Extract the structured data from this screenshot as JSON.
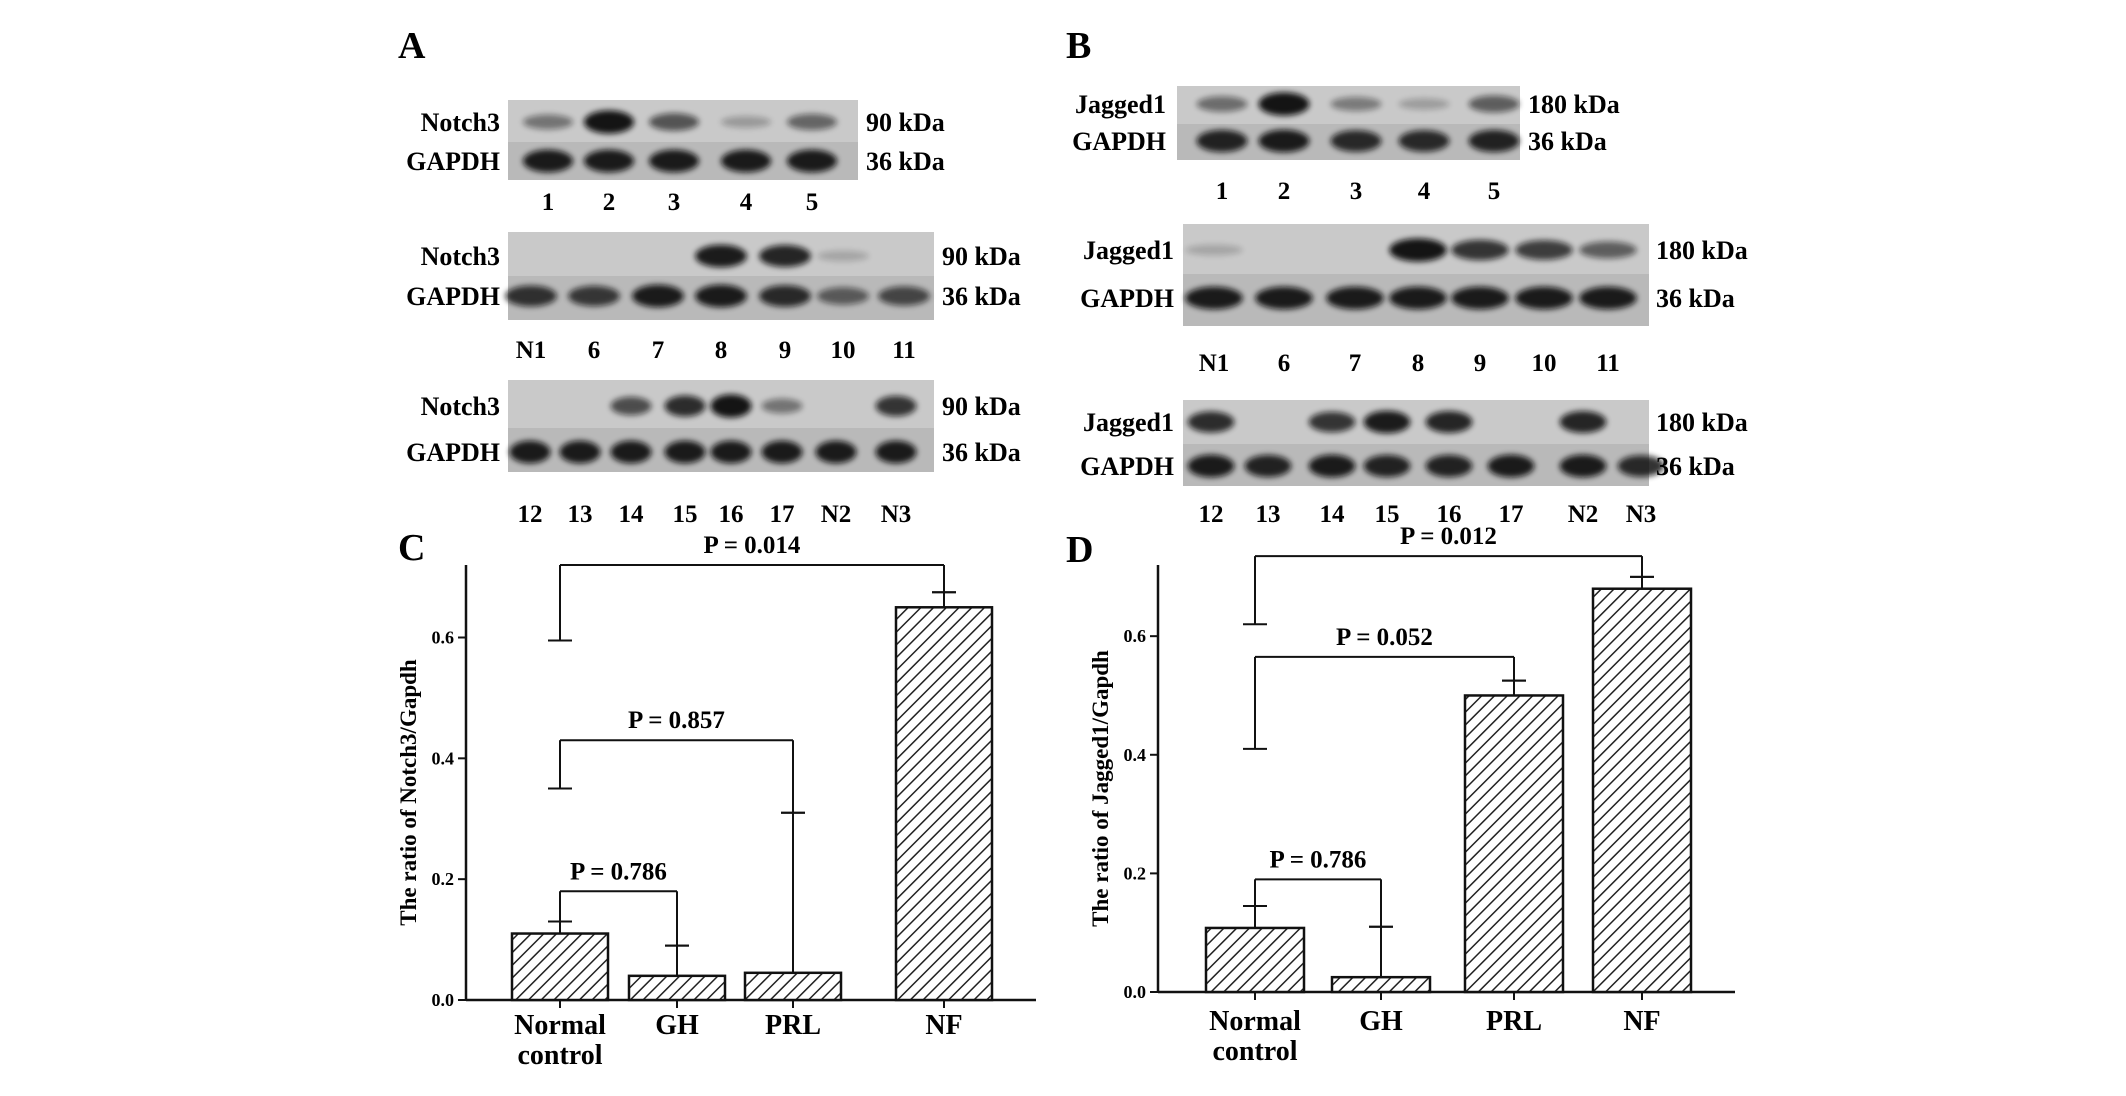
{
  "figure": {
    "panels": {
      "A": {
        "letter": "A",
        "blots": [
          {
            "target": "Notch3",
            "target_kda": "90 kDa",
            "control": "GAPDH",
            "control_kda": "36 kDa",
            "lanes": [
              "1",
              "2",
              "3",
              "4",
              "5"
            ],
            "target_band_intensity": [
              0.35,
              0.95,
              0.55,
              0.12,
              0.45
            ],
            "control_band_intensity": [
              0.9,
              0.9,
              0.9,
              0.9,
              0.9
            ]
          },
          {
            "target": "Notch3",
            "target_kda": "90 kDa",
            "control": "GAPDH",
            "control_kda": "36 kDa",
            "lanes": [
              "N1",
              "6",
              "7",
              "8",
              "9",
              "10",
              "11"
            ],
            "target_band_intensity": [
              0,
              0,
              0,
              0.9,
              0.85,
              0.05,
              0
            ],
            "control_band_intensity": [
              0.75,
              0.7,
              0.9,
              0.9,
              0.8,
              0.45,
              0.6
            ]
          },
          {
            "target": "Notch3",
            "target_kda": "90 kDa",
            "control": "GAPDH",
            "control_kda": "36 kDa",
            "lanes": [
              "12",
              "13",
              "14",
              "15",
              "16",
              "17",
              "N2",
              "N3"
            ],
            "target_band_intensity": [
              0,
              0,
              0.6,
              0.8,
              0.95,
              0.35,
              0,
              0.75
            ],
            "control_band_intensity": [
              0.9,
              0.9,
              0.9,
              0.9,
              0.9,
              0.9,
              0.9,
              0.9
            ]
          }
        ]
      },
      "B": {
        "letter": "B",
        "blots": [
          {
            "target": "Jagged1",
            "target_kda": "180 kDa",
            "control": "GAPDH",
            "control_kda": "36 kDa",
            "lanes": [
              "1",
              "2",
              "3",
              "4",
              "5"
            ],
            "target_band_intensity": [
              0.4,
              0.95,
              0.3,
              0.1,
              0.5
            ],
            "control_band_intensity": [
              0.85,
              0.9,
              0.8,
              0.8,
              0.85
            ]
          },
          {
            "target": "Jagged1",
            "target_kda": "180 kDa",
            "control": "GAPDH",
            "control_kda": "36 kDa",
            "lanes": [
              "N1",
              "6",
              "7",
              "8",
              "9",
              "10",
              "11"
            ],
            "target_band_intensity": [
              0.05,
              0,
              0,
              0.95,
              0.75,
              0.7,
              0.5
            ],
            "control_band_intensity": [
              0.9,
              0.9,
              0.9,
              0.9,
              0.9,
              0.9,
              0.9
            ]
          },
          {
            "target": "Jagged1",
            "target_kda": "180 kDa",
            "control": "GAPDH",
            "control_kda": "36 kDa",
            "lanes": [
              "12",
              "13",
              "14",
              "15",
              "16",
              "17",
              "N2",
              "N3"
            ],
            "target_band_intensity": [
              0.8,
              0,
              0.75,
              0.9,
              0.85,
              0,
              0.85,
              0
            ],
            "control_band_intensity": [
              0.9,
              0.85,
              0.9,
              0.85,
              0.85,
              0.9,
              0.9,
              0.8
            ]
          }
        ]
      },
      "C": {
        "letter": "C"
      },
      "D": {
        "letter": "D"
      }
    }
  },
  "chart_data": [
    {
      "panel": "C",
      "type": "bar",
      "categories": [
        "Normal\ncontrol",
        "GH",
        "PRL",
        "NF"
      ],
      "values": [
        0.11,
        0.04,
        0.045,
        0.65
      ],
      "error_upper": [
        0.13,
        0.09,
        0.31,
        0.675
      ],
      "ylabel": "The ratio of Notch3/Gapdh",
      "xlabel": "",
      "ylim": [
        0,
        0.72
      ],
      "yticks": [
        0.0,
        0.2,
        0.4,
        0.6
      ],
      "ytick_labels": [
        "0.0",
        "0.2",
        "0.4",
        "0.6"
      ],
      "fill": "diagonal hatch",
      "comparisons": [
        {
          "from": 0,
          "to": 3,
          "label": "P = 0.014",
          "y": 0.72,
          "left_drop": 0.595,
          "right_drop": 0.675
        },
        {
          "from": 0,
          "to": 2,
          "label": "P = 0.857",
          "y": 0.43,
          "left_drop": 0.35,
          "right_drop": 0.31
        },
        {
          "from": 0,
          "to": 1,
          "label": "P = 0.786",
          "y": 0.18,
          "left_drop": 0.13,
          "right_drop": 0.09
        }
      ]
    },
    {
      "panel": "D",
      "type": "bar",
      "categories": [
        "Normal\ncontrol",
        "GH",
        "PRL",
        "NF"
      ],
      "values": [
        0.108,
        0.025,
        0.5,
        0.68
      ],
      "error_upper": [
        0.145,
        0.11,
        0.525,
        0.7
      ],
      "ylabel": "The ratio of Jagged1/Gapdh",
      "xlabel": "",
      "ylim": [
        0,
        0.72
      ],
      "yticks": [
        0.0,
        0.2,
        0.4,
        0.6
      ],
      "ytick_labels": [
        "0.0",
        "0.2",
        "0.4",
        "0.6"
      ],
      "fill": "diagonal hatch",
      "comparisons": [
        {
          "from": 0,
          "to": 3,
          "label": "P = 0.012",
          "y": 0.735,
          "left_drop": 0.62,
          "right_drop": 0.7
        },
        {
          "from": 0,
          "to": 2,
          "label": "P = 0.052",
          "y": 0.565,
          "left_drop": 0.41,
          "right_drop": 0.525
        },
        {
          "from": 0,
          "to": 1,
          "label": "P = 0.786",
          "y": 0.19,
          "left_drop": 0.145,
          "right_drop": 0.11
        }
      ]
    }
  ]
}
